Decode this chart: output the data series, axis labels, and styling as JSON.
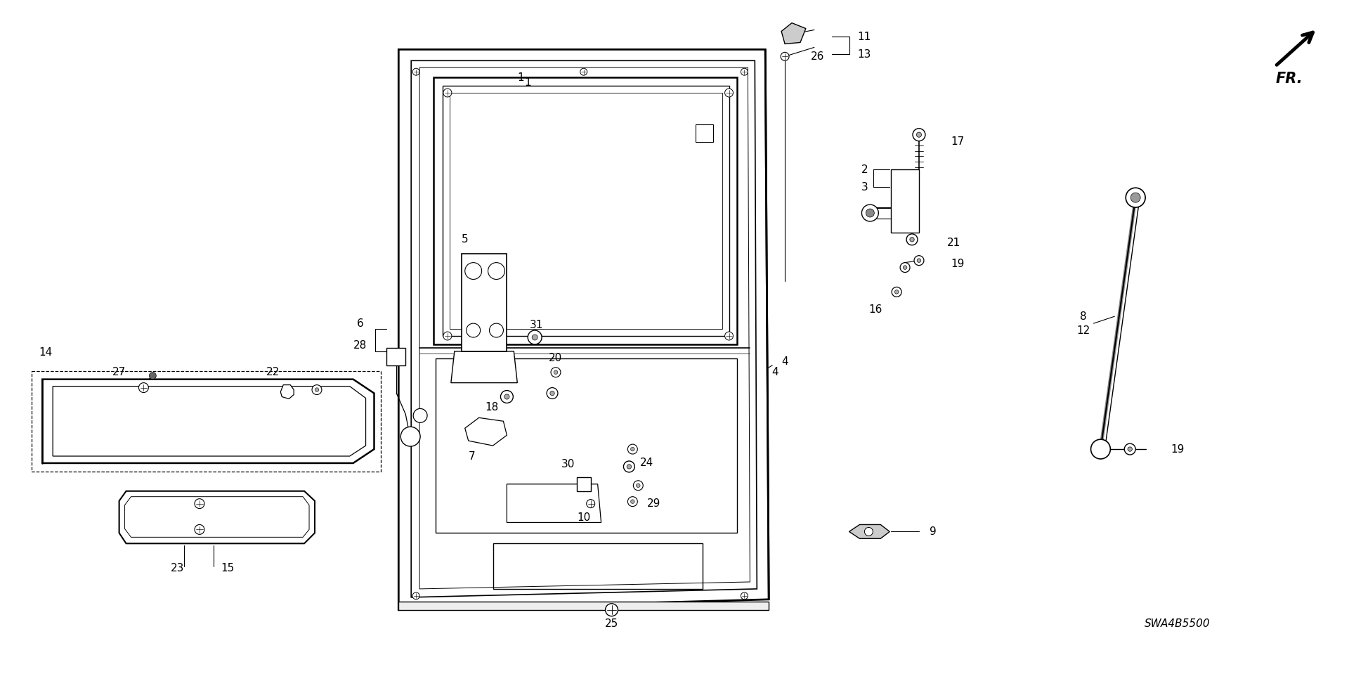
{
  "bg_color": "#ffffff",
  "line_color": "#000000",
  "diagram_id": "SWA4B5500",
  "fig_width": 19.2,
  "fig_height": 9.59
}
